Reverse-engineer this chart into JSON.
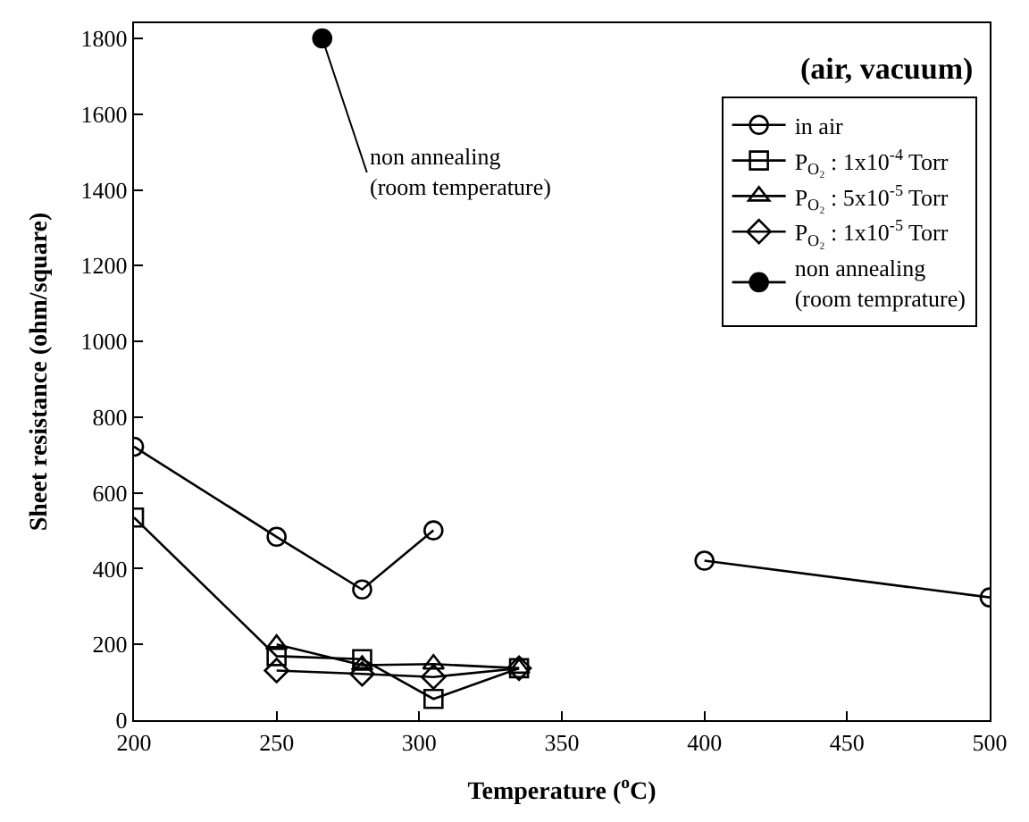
{
  "chart_data": {
    "type": "line",
    "xlabel": "Temperature ($^{o}$C)",
    "ylabel": "Sheet resistance (ohm/square)",
    "xlim": [
      200,
      500
    ],
    "xticks": [
      200,
      250,
      300,
      350,
      400,
      450,
      500
    ],
    "ylim": [
      0,
      1840
    ],
    "yticks": [
      0,
      200,
      400,
      600,
      800,
      1000,
      1200,
      1400,
      1600,
      1800
    ],
    "legend": "top right",
    "annotations": [
      "(air, vacuum)",
      {
        "text": "non annealing\n(room temperature)",
        "x": 266,
        "y": 1800
      }
    ],
    "series": [
      {
        "name": "in air",
        "color": "#000000",
        "marker": "circle",
        "x": [
          200,
          250,
          280,
          305,
          350,
          400,
          500
        ],
        "values": [
          722,
          484,
          345,
          501,
          null,
          421,
          324
        ]
      },
      {
        "name": "P$_{O₂}$ : 1x10$^{-4}$ Torr",
        "color": "#000000",
        "marker": "square",
        "x": [
          200,
          250,
          280,
          305,
          335
        ],
        "values": [
          535,
          169,
          161,
          56,
          137
        ]
      },
      {
        "name": "P$_{O₂}$ : 5x10$^{-5}$ Torr",
        "color": "#000000",
        "marker": "triangle",
        "x": [
          250,
          280,
          305,
          335
        ],
        "values": [
          200,
          145,
          148,
          137
        ]
      },
      {
        "name": "P$_{O₂}$ : 1x10$^{-5}$ Torr",
        "color": "#000000",
        "marker": "diamond",
        "x": [
          250,
          280,
          305,
          335
        ],
        "values": [
          131,
          122,
          114,
          137
        ]
      },
      {
        "name": "non annealing\n(room temprature)",
        "color": "#000000",
        "marker": "circle-filled",
        "x": [
          266
        ],
        "values": [
          1800
        ]
      }
    ]
  }
}
